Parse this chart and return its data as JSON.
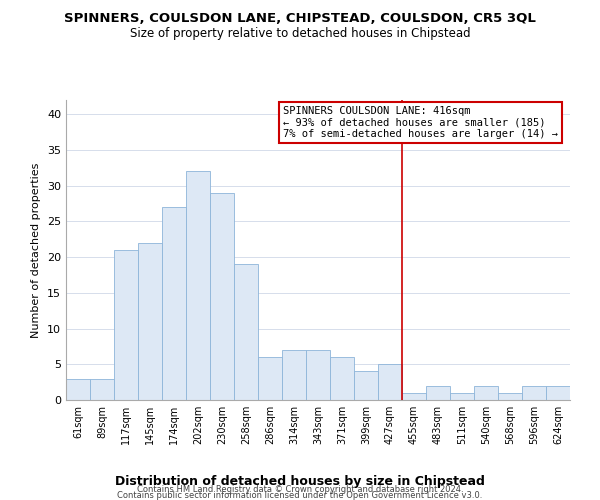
{
  "title": "SPINNERS, COULSDON LANE, CHIPSTEAD, COULSDON, CR5 3QL",
  "subtitle": "Size of property relative to detached houses in Chipstead",
  "xlabel": "Distribution of detached houses by size in Chipstead",
  "ylabel": "Number of detached properties",
  "bar_labels": [
    "61sqm",
    "89sqm",
    "117sqm",
    "145sqm",
    "174sqm",
    "202sqm",
    "230sqm",
    "258sqm",
    "286sqm",
    "314sqm",
    "343sqm",
    "371sqm",
    "399sqm",
    "427sqm",
    "455sqm",
    "483sqm",
    "511sqm",
    "540sqm",
    "568sqm",
    "596sqm",
    "624sqm"
  ],
  "bar_values": [
    3,
    3,
    21,
    22,
    27,
    32,
    29,
    19,
    6,
    7,
    7,
    6,
    4,
    5,
    1,
    2,
    1,
    2,
    1,
    2,
    2
  ],
  "bar_color": "#dde8f5",
  "bar_edge_color": "#8db4d9",
  "vline_x_idx": 13.5,
  "vline_color": "#cc0000",
  "annotation_title": "SPINNERS COULSDON LANE: 416sqm",
  "annotation_line1": "← 93% of detached houses are smaller (185)",
  "annotation_line2": "7% of semi-detached houses are larger (14) →",
  "annotation_box_color": "#ffffff",
  "annotation_box_edge": "#cc0000",
  "ylim": [
    0,
    42
  ],
  "yticks": [
    0,
    5,
    10,
    15,
    20,
    25,
    30,
    35,
    40
  ],
  "footer1": "Contains HM Land Registry data © Crown copyright and database right 2024.",
  "footer2": "Contains public sector information licensed under the Open Government Licence v3.0.",
  "background_color": "#ffffff",
  "grid_color": "#d0d8e8"
}
